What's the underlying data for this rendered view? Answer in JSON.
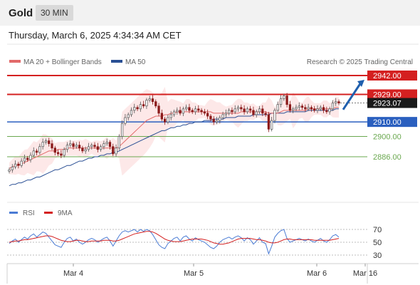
{
  "header": {
    "title": "Gold",
    "timeframe": "30 MIN"
  },
  "datetime": "Thursday, March 6, 2025 4:34:34 AM CET",
  "legend": {
    "ma20": "MA 20 + Bollinger Bands",
    "ma50": "MA 50"
  },
  "watermark": "Research © 2025 Trading Central",
  "colors": {
    "ma20": "#e26a6a",
    "ma50": "#2a4f94",
    "band": "#fde2e2",
    "resistance": "#d42020",
    "support": "#2a5fbf",
    "green": "#6aa84f",
    "arrow": "#1f5fae",
    "rsi": "#4a7bd4",
    "rsi_ma": "#d42020"
  },
  "levels": [
    {
      "value": 2942.0,
      "label": "2942.00",
      "type": "resistance"
    },
    {
      "value": 2929.0,
      "label": "2929.00",
      "type": "resistance"
    },
    {
      "value": 2923.07,
      "label": "2923.07",
      "type": "last"
    },
    {
      "value": 2910.0,
      "label": "2910.00",
      "type": "support"
    },
    {
      "value": 2900.0,
      "label": "2900.00",
      "type": "minor"
    },
    {
      "value": 2886.0,
      "label": "2886.00",
      "type": "minor"
    }
  ],
  "rsi_panel": {
    "legend": [
      "RSI",
      "9MA"
    ],
    "levels": [
      "70",
      "50",
      "30"
    ]
  },
  "x_axis": [
    "Mar 4",
    "Mar 5",
    "Mar 6",
    "Mar 16"
  ],
  "chart_data": {
    "type": "candlestick",
    "title": "Gold 30 MIN",
    "ylim": [
      2862,
      2947
    ],
    "price_closes": [
      2877,
      2879,
      2881,
      2880,
      2883,
      2885,
      2884,
      2887,
      2890,
      2889,
      2893,
      2896,
      2897,
      2895,
      2892,
      2889,
      2888,
      2887,
      2891,
      2894,
      2895,
      2893,
      2894,
      2892,
      2890,
      2891,
      2893,
      2894,
      2893,
      2891,
      2893,
      2895,
      2896,
      2893,
      2888,
      2892,
      2900,
      2909,
      2913,
      2915,
      2918,
      2920,
      2919,
      2922,
      2921,
      2925,
      2926,
      2924,
      2921,
      2916,
      2912,
      2910,
      2913,
      2915,
      2917,
      2918,
      2916,
      2919,
      2920,
      2918,
      2917,
      2919,
      2918,
      2917,
      2916,
      2914,
      2912,
      2910,
      2911,
      2913,
      2915,
      2916,
      2918,
      2917,
      2919,
      2920,
      2919,
      2917,
      2919,
      2918,
      2915,
      2917,
      2919,
      2916,
      2915,
      2905,
      2911,
      2918,
      2922,
      2926,
      2928,
      2922,
      2918,
      2919,
      2920,
      2921,
      2920,
      2919,
      2920,
      2919,
      2918,
      2919,
      2920,
      2918,
      2917,
      2919,
      2923,
      2924,
      2923
    ],
    "ma20": [
      2878,
      2879,
      2880,
      2880,
      2881,
      2882,
      2883,
      2884,
      2885,
      2886,
      2887,
      2888,
      2889,
      2890,
      2890,
      2890,
      2891,
      2891,
      2891,
      2892,
      2892,
      2892,
      2892,
      2892,
      2892,
      2892,
      2892,
      2892,
      2892,
      2892,
      2892,
      2892,
      2892,
      2892,
      2892,
      2892,
      2893,
      2895,
      2897,
      2899,
      2901,
      2903,
      2905,
      2907,
      2909,
      2911,
      2912,
      2913,
      2914,
      2914,
      2914,
      2915,
      2915,
      2916,
      2916,
      2917,
      2917,
      2917,
      2917,
      2917,
      2917,
      2917,
      2917,
      2917,
      2917,
      2917,
      2917,
      2916,
      2916,
      2916,
      2916,
      2916,
      2916,
      2916,
      2916,
      2916,
      2917,
      2917,
      2917,
      2917,
      2917,
      2917,
      2917,
      2917,
      2917,
      2916,
      2916,
      2916,
      2916,
      2917,
      2918,
      2918,
      2918,
      2918,
      2918,
      2918,
      2918,
      2918,
      2919,
      2919,
      2919,
      2919,
      2919,
      2919,
      2919,
      2919,
      2919,
      2920,
      2920
    ],
    "ma50": [
      2866,
      2867,
      2867,
      2868,
      2868,
      2869,
      2870,
      2870,
      2871,
      2872,
      2872,
      2873,
      2874,
      2875,
      2876,
      2877,
      2877,
      2878,
      2879,
      2880,
      2880,
      2881,
      2882,
      2883,
      2883,
      2884,
      2885,
      2885,
      2886,
      2886,
      2887,
      2887,
      2888,
      2888,
      2889,
      2889,
      2890,
      2891,
      2892,
      2893,
      2894,
      2895,
      2896,
      2897,
      2898,
      2899,
      2900,
      2901,
      2902,
      2903,
      2904,
      2904,
      2905,
      2906,
      2906,
      2907,
      2907,
      2908,
      2908,
      2909,
      2909,
      2910,
      2910,
      2910,
      2911,
      2911,
      2911,
      2912,
      2912,
      2912,
      2912,
      2913,
      2913,
      2913,
      2913,
      2914,
      2914,
      2914,
      2914,
      2914,
      2915,
      2915,
      2915,
      2915,
      2915,
      2915,
      2916,
      2916,
      2916,
      2916,
      2916,
      2917,
      2917,
      2917,
      2917,
      2917,
      2917,
      2917,
      2918,
      2918,
      2918,
      2918,
      2918,
      2918,
      2918,
      2918,
      2918,
      2919,
      2919
    ],
    "forecast_arrow": {
      "from": 2918.5,
      "to": 2942.0
    },
    "rsi": [
      48,
      52,
      55,
      50,
      54,
      58,
      55,
      60,
      63,
      58,
      62,
      66,
      64,
      58,
      52,
      46,
      44,
      42,
      50,
      56,
      58,
      52,
      55,
      50,
      47,
      50,
      54,
      56,
      54,
      50,
      53,
      56,
      58,
      52,
      44,
      52,
      60,
      66,
      68,
      66,
      68,
      70,
      66,
      70,
      67,
      70,
      68,
      62,
      54,
      46,
      42,
      40,
      48,
      52,
      56,
      58,
      52,
      58,
      60,
      55,
      52,
      57,
      54,
      52,
      50,
      46,
      42,
      40,
      44,
      50,
      54,
      56,
      58,
      55,
      58,
      60,
      57,
      52,
      57,
      54,
      47,
      52,
      57,
      50,
      48,
      32,
      44,
      58,
      64,
      68,
      70,
      56,
      50,
      52,
      54,
      56,
      54,
      52,
      55,
      52,
      50,
      53,
      56,
      52,
      50,
      54,
      60,
      62,
      58
    ],
    "rsi_ma": [
      50,
      51,
      52,
      52,
      53,
      54,
      54,
      55,
      56,
      57,
      58,
      59,
      60,
      60,
      59,
      57,
      55,
      53,
      52,
      51,
      51,
      52,
      53,
      53,
      52,
      51,
      51,
      52,
      52,
      52,
      52,
      53,
      53,
      53,
      52,
      52,
      53,
      55,
      57,
      59,
      61,
      63,
      64,
      65,
      66,
      67,
      67,
      66,
      64,
      61,
      58,
      55,
      53,
      52,
      51,
      51,
      51,
      52,
      53,
      54,
      55,
      55,
      55,
      55,
      54,
      53,
      51,
      49,
      48,
      47,
      47,
      48,
      49,
      51,
      53,
      55,
      56,
      56,
      56,
      56,
      55,
      54,
      54,
      53,
      52,
      50,
      49,
      49,
      50,
      52,
      54,
      55,
      55,
      54,
      54,
      54,
      54,
      54,
      54,
      54,
      53,
      53,
      53,
      53,
      53,
      53,
      54,
      55,
      56
    ],
    "rsi_levels": [
      70,
      50,
      30
    ]
  }
}
